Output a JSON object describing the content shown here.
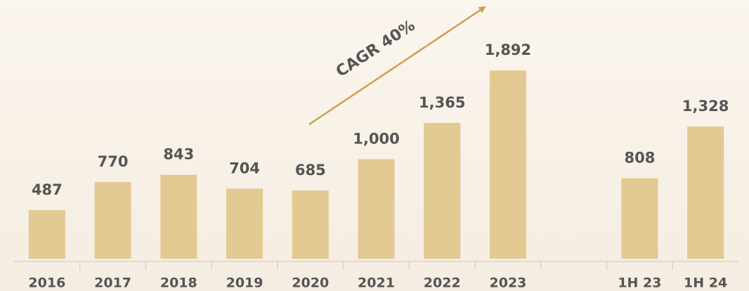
{
  "chart_data": {
    "type": "bar",
    "annotation": "CAGR 40%",
    "categories": [
      "2016",
      "2017",
      "2018",
      "2019",
      "2020",
      "2021",
      "2022",
      "2023",
      null,
      "1H 23",
      "1H 24"
    ],
    "values": [
      487,
      770,
      843,
      704,
      685,
      1000,
      1365,
      1892,
      null,
      808,
      1328
    ],
    "value_labels": [
      "487",
      "770",
      "843",
      "704",
      "685",
      "1,000",
      "1,365",
      "1,892",
      null,
      "808",
      "1,328"
    ],
    "color": "#e3c992",
    "ylim": [
      0,
      2600
    ]
  }
}
